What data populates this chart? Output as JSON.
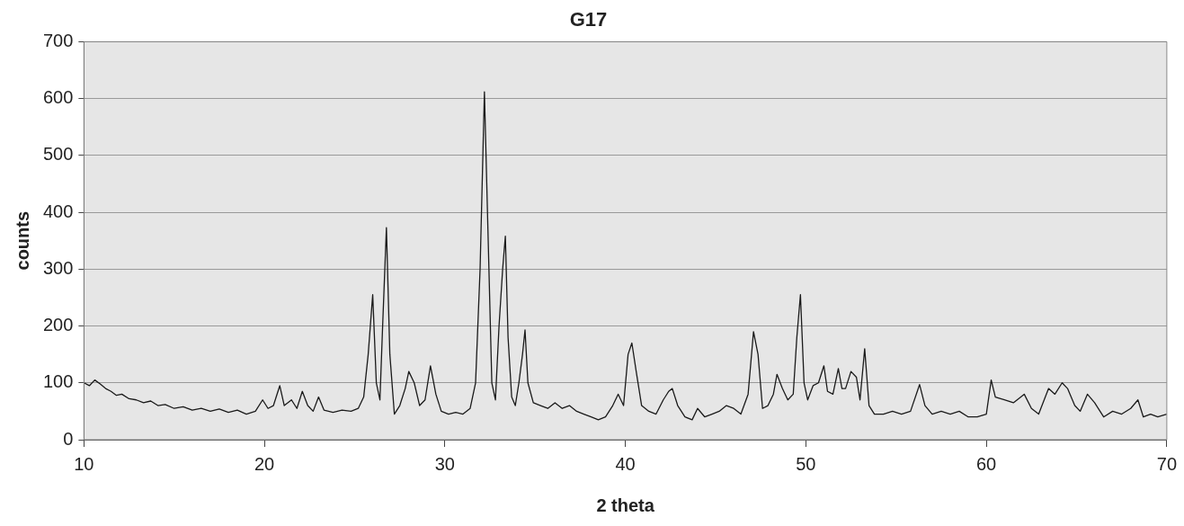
{
  "chart_data": {
    "type": "line",
    "title": "G17",
    "xlabel": "2 theta",
    "ylabel": "counts",
    "series": [
      {
        "color": "#1a1a1a",
        "x": [
          10,
          10.3,
          10.6,
          10.9,
          11.2,
          11.5,
          11.8,
          12.1,
          12.5,
          12.9,
          13.3,
          13.7,
          14.1,
          14.5,
          15,
          15.5,
          16,
          16.5,
          17,
          17.5,
          18,
          18.5,
          19,
          19.5,
          19.9,
          20.2,
          20.5,
          20.85,
          21.1,
          21.5,
          21.8,
          22.1,
          22.4,
          22.7,
          23,
          23.3,
          23.8,
          24.3,
          24.8,
          25.2,
          25.5,
          25.75,
          26,
          26.2,
          26.4,
          26.55,
          26.76,
          26.95,
          27.2,
          27.5,
          27.8,
          28,
          28.3,
          28.6,
          28.9,
          29.2,
          29.5,
          29.8,
          30.2,
          30.6,
          31,
          31.4,
          31.7,
          31.95,
          32.19,
          32.4,
          32.6,
          32.8,
          33,
          33.2,
          33.35,
          33.5,
          33.7,
          33.9,
          34.1,
          34.3,
          34.44,
          34.6,
          34.9,
          35.3,
          35.7,
          36.1,
          36.5,
          36.9,
          37.3,
          37.7,
          38.1,
          38.5,
          38.9,
          39.3,
          39.6,
          39.9,
          40.15,
          40.36,
          40.6,
          40.9,
          41.3,
          41.7,
          42.1,
          42.4,
          42.6,
          42.9,
          43.3,
          43.7,
          44,
          44.4,
          44.8,
          45.2,
          45.6,
          46,
          46.4,
          46.8,
          47.1,
          47.35,
          47.6,
          47.9,
          48.2,
          48.4,
          48.7,
          49,
          49.3,
          49.5,
          49.7,
          49.9,
          50.1,
          50.4,
          50.7,
          51,
          51.2,
          51.5,
          51.8,
          52,
          52.2,
          52.5,
          52.8,
          53,
          53.26,
          53.5,
          53.8,
          54.3,
          54.8,
          55.3,
          55.8,
          56.3,
          56.6,
          57,
          57.5,
          58,
          58.5,
          59,
          59.5,
          60,
          60.27,
          60.5,
          61,
          61.5,
          62.1,
          62.5,
          62.9,
          63.45,
          63.8,
          64.2,
          64.5,
          64.9,
          65.2,
          65.6,
          66,
          66.5,
          67,
          67.5,
          68,
          68.4,
          68.7,
          69.1,
          69.5,
          70
        ],
        "values": [
          100,
          95,
          105,
          98,
          90,
          85,
          78,
          80,
          72,
          70,
          65,
          68,
          60,
          62,
          55,
          58,
          52,
          55,
          50,
          54,
          48,
          52,
          45,
          50,
          70,
          55,
          60,
          95,
          60,
          70,
          55,
          85,
          60,
          50,
          75,
          52,
          48,
          52,
          50,
          55,
          75,
          150,
          255,
          100,
          70,
          200,
          373,
          150,
          45,
          60,
          90,
          120,
          100,
          60,
          70,
          130,
          80,
          50,
          45,
          48,
          45,
          55,
          100,
          300,
          612,
          350,
          100,
          70,
          200,
          300,
          358,
          180,
          75,
          60,
          100,
          150,
          193,
          100,
          65,
          60,
          55,
          65,
          55,
          60,
          50,
          45,
          40,
          35,
          40,
          60,
          80,
          60,
          150,
          170,
          120,
          60,
          50,
          45,
          70,
          85,
          90,
          60,
          40,
          35,
          55,
          40,
          45,
          50,
          60,
          55,
          45,
          80,
          190,
          150,
          55,
          60,
          80,
          115,
          90,
          70,
          80,
          180,
          255,
          100,
          70,
          95,
          100,
          130,
          85,
          80,
          125,
          90,
          90,
          120,
          110,
          70,
          160,
          60,
          45,
          45,
          50,
          45,
          50,
          97,
          60,
          45,
          50,
          45,
          50,
          40,
          40,
          45,
          105,
          75,
          70,
          65,
          80,
          55,
          45,
          90,
          80,
          100,
          90,
          60,
          50,
          80,
          65,
          40,
          50,
          45,
          55,
          70,
          40,
          45,
          40,
          45
        ]
      }
    ],
    "xlim": [
      10,
      70
    ],
    "xticks": [
      10,
      20,
      30,
      40,
      50,
      60,
      70
    ],
    "ylim": [
      0,
      700
    ],
    "yticks": [
      0,
      100,
      200,
      300,
      400,
      500,
      600,
      700
    ],
    "grid": "y",
    "legend": false,
    "marker": "none",
    "line_style": "solid"
  }
}
